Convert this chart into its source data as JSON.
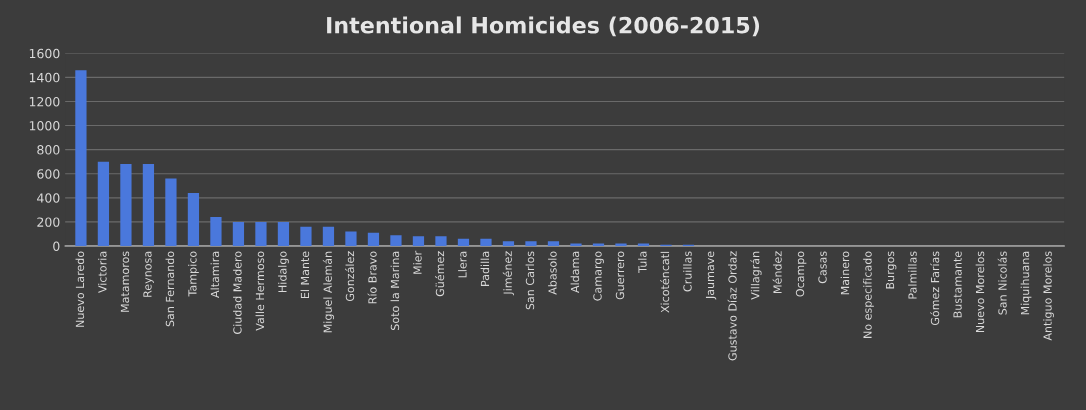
{
  "chart_data": {
    "type": "bar",
    "title": "Intentional Homicides (2006-2015)",
    "categories": [
      "Nuevo Laredo",
      "Victoria",
      "Matamoros",
      "Reynosa",
      "San Fernando",
      "Tampico",
      "Altamira",
      "Ciudad Madero",
      "Valle Hermoso",
      "Hidalgo",
      "El Mante",
      "Miguel Alemán",
      "González",
      "Río Bravo",
      "Soto la Marina",
      "Mier",
      "Güémez",
      "Llera",
      "Padilla",
      "Jiménez",
      "San Carlos",
      "Abasolo",
      "Aldama",
      "Camargo",
      "Guerrero",
      "Tula",
      "Xicoténcatl",
      "Cruillas",
      "Jaumave",
      "Gustavo Díaz Ordaz",
      "Villagrán",
      "Méndez",
      "Ocampo",
      "Casas",
      "Mainero",
      "No especificado",
      "Burgos",
      "Palmillas",
      "Gómez Farías",
      "Bustamante",
      "Nuevo Morelos",
      "San Nicolás",
      "Miquihuana",
      "Antiguo Morelos"
    ],
    "values": [
      1460,
      700,
      680,
      680,
      560,
      440,
      240,
      200,
      200,
      200,
      160,
      160,
      120,
      110,
      90,
      80,
      80,
      60,
      60,
      40,
      40,
      40,
      20,
      20,
      20,
      20,
      10,
      10,
      null,
      null,
      null,
      null,
      null,
      null,
      null,
      null,
      null,
      null,
      null,
      null,
      null,
      null,
      null,
      null
    ],
    "color": "#4a78dc",
    "ylim": [
      0,
      1600
    ],
    "yticks": [
      0,
      200,
      400,
      600,
      800,
      1000,
      1200,
      1400,
      1600
    ],
    "grid": "y"
  }
}
